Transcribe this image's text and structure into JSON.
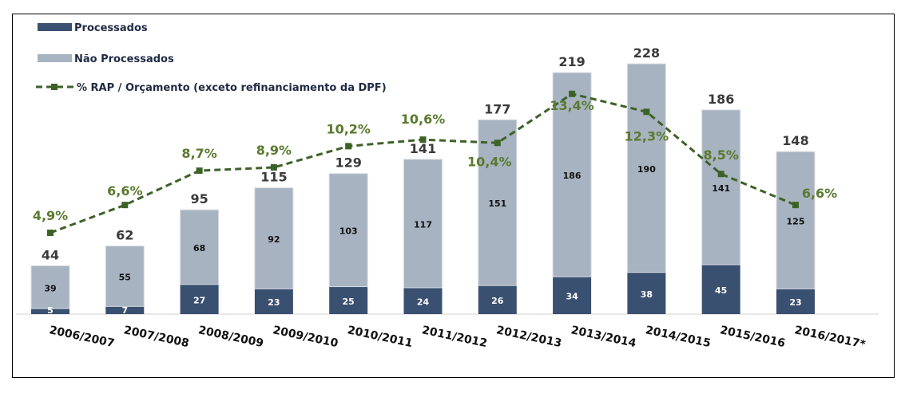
{
  "chart_data": {
    "type": "bar",
    "stacked": true,
    "categories": [
      "2006/2007",
      "2007/2008",
      "2008/2009",
      "2009/2010",
      "2010/2011",
      "2011/2012",
      "2012/2013",
      "2013/2014",
      "2014/2015",
      "2015/2016",
      "2016/2017*"
    ],
    "series": [
      {
        "name": "Processados",
        "type": "bar",
        "color": "#3a5070",
        "values": [
          5,
          7,
          27,
          23,
          25,
          24,
          26,
          34,
          38,
          45,
          23
        ]
      },
      {
        "name": "Não Processados",
        "type": "bar",
        "color": "#a7b3c1",
        "values": [
          39,
          55,
          68,
          92,
          103,
          117,
          151,
          186,
          190,
          141,
          125
        ]
      },
      {
        "name": "% RAP / Orçamento (exceto refinanciamento da DPF)",
        "type": "line",
        "style": "dashed",
        "color": "#3d6227",
        "values": [
          4.9,
          6.6,
          8.7,
          8.9,
          10.2,
          10.6,
          10.4,
          13.4,
          12.3,
          8.5,
          6.6
        ],
        "labels": [
          "4,9%",
          "6,6%",
          "8,7%",
          "8,9%",
          "10,2%",
          "10,6%",
          "10,4%",
          "13,4%",
          "12,3%",
          "8,5%",
          "6,6%"
        ]
      }
    ],
    "totals": [
      44,
      62,
      95,
      115,
      129,
      141,
      177,
      219,
      228,
      186,
      148
    ],
    "legend": "top-left",
    "grid": false,
    "title": "",
    "xlabel": "",
    "ylabel": ""
  }
}
